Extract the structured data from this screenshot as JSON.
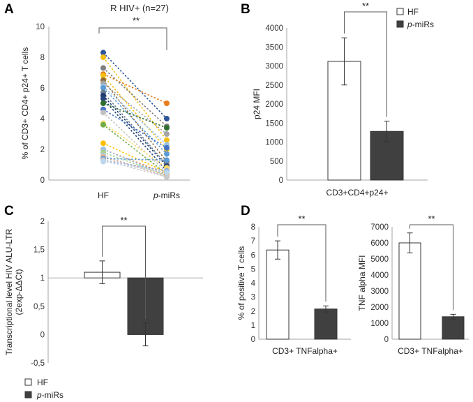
{
  "panels": {
    "A": {
      "letter": "A"
    },
    "B": {
      "letter": "B"
    },
    "C": {
      "letter": "C"
    },
    "D": {
      "letter": "D"
    }
  },
  "colors": {
    "hf_bar": "#ffffff",
    "pmirs_bar": "#404040",
    "axis": "#a6a6a6",
    "sig": "#595959"
  },
  "chart_data": [
    {
      "id": "A",
      "type": "scatter",
      "title": "R HIV+ (n=27)",
      "ylabel": "% of CD3+ CD4+ p24+ T cells",
      "categories": [
        "HF",
        "p-miRs"
      ],
      "category_labels": [
        {
          "text": "HF",
          "italic": ""
        },
        {
          "text": "-miRs",
          "italic": "p"
        }
      ],
      "ylim": [
        0,
        10
      ],
      "yticks": [
        0,
        2,
        4,
        6,
        8,
        10
      ],
      "significance": "**",
      "pairs": [
        {
          "hf": 8.3,
          "pmirs": 4.0,
          "color": "#2e5597"
        },
        {
          "hf": 8.0,
          "pmirs": 2.6,
          "color": "#f4bf14"
        },
        {
          "hf": 7.3,
          "pmirs": 3.5,
          "color": "#7f7f7f"
        },
        {
          "hf": 6.9,
          "pmirs": 5.0,
          "color": "#e87b1b"
        },
        {
          "hf": 6.8,
          "pmirs": 2.0,
          "color": "#f4bf14"
        },
        {
          "hf": 6.5,
          "pmirs": 1.2,
          "color": "#8e6a3a"
        },
        {
          "hf": 6.3,
          "pmirs": 3.0,
          "color": "#a5a5a5"
        },
        {
          "hf": 6.1,
          "pmirs": 2.3,
          "color": "#9cc3e6"
        },
        {
          "hf": 6.0,
          "pmirs": 1.7,
          "color": "#5b9bd5"
        },
        {
          "hf": 5.7,
          "pmirs": 1.0,
          "color": "#6b7e8f"
        },
        {
          "hf": 5.5,
          "pmirs": 0.9,
          "color": "#1f3a6e"
        },
        {
          "hf": 5.3,
          "pmirs": 0.6,
          "color": "#264478"
        },
        {
          "hf": 5.0,
          "pmirs": 3.4,
          "color": "#2e6e2e"
        },
        {
          "hf": 4.6,
          "pmirs": 2.1,
          "color": "#4472c4"
        },
        {
          "hf": 4.4,
          "pmirs": 0.5,
          "color": "#c0c0c0"
        },
        {
          "hf": 3.7,
          "pmirs": 0.8,
          "color": "#ffd966"
        },
        {
          "hf": 3.6,
          "pmirs": 0.4,
          "color": "#70ad47"
        },
        {
          "hf": 2.4,
          "pmirs": 0.5,
          "color": "#ffc000"
        },
        {
          "hf": 2.0,
          "pmirs": 0.4,
          "color": "#ed7d31"
        },
        {
          "hf": 2.0,
          "pmirs": 0.3,
          "color": "#9cc3e6"
        },
        {
          "hf": 1.8,
          "pmirs": 0.3,
          "color": "#a9d18e"
        },
        {
          "hf": 1.6,
          "pmirs": 0.2,
          "color": "#b4c7e7"
        },
        {
          "hf": 1.5,
          "pmirs": 0.3,
          "color": "#f4b183"
        },
        {
          "hf": 1.4,
          "pmirs": 1.3,
          "color": "#5b9bd5"
        },
        {
          "hf": 1.3,
          "pmirs": 0.6,
          "color": "#8faadc"
        },
        {
          "hf": 1.3,
          "pmirs": 0.2,
          "color": "#c9c9c9"
        },
        {
          "hf": 1.2,
          "pmirs": 0.5,
          "color": "#bdd7ee"
        }
      ]
    },
    {
      "id": "B",
      "type": "bar",
      "ylabel": "p24 MFI",
      "xlabel": "CD3+CD4+p24+",
      "ylim": [
        0,
        4000
      ],
      "yticks": [
        0,
        500,
        1000,
        1500,
        2000,
        2500,
        3000,
        3500,
        4000
      ],
      "significance": "**",
      "series": [
        {
          "name": "HF",
          "value": 3120,
          "err": 620
        },
        {
          "name": "p-miRs",
          "value": 1280,
          "err": 270
        }
      ],
      "legend": [
        {
          "text": "HF",
          "italic": ""
        },
        {
          "text": "-miRs",
          "italic": "p"
        }
      ]
    },
    {
      "id": "C",
      "type": "bar",
      "ylabel_lines": [
        "Transcriptional level HIV ALU-LTR",
        "(2exp-ΔΔCt)"
      ],
      "ylim": [
        -0.5,
        2
      ],
      "yticks": [
        -0.5,
        0,
        0.5,
        1,
        1.5,
        2
      ],
      "ytick_labels": [
        "-0,5",
        "0",
        "0,5",
        "1",
        "1,5",
        "2"
      ],
      "baseline": 1,
      "significance": "**",
      "series": [
        {
          "name": "HF",
          "value": 1.1,
          "err": 0.2
        },
        {
          "name": "p-miRs",
          "value": 0.0,
          "err": 0.2
        }
      ],
      "legend": [
        {
          "text": "HF",
          "italic": ""
        },
        {
          "text": "-miRs",
          "italic": "p"
        }
      ]
    },
    {
      "id": "D1",
      "type": "bar",
      "ylabel": "% of positive  T cells",
      "xlabel": "CD3+ TNFalpha+",
      "ylim": [
        0,
        8
      ],
      "yticks": [
        0,
        1,
        2,
        3,
        4,
        5,
        6,
        7,
        8
      ],
      "significance": "**",
      "series": [
        {
          "name": "HF",
          "value": 6.35,
          "err": 0.65
        },
        {
          "name": "p-miRs",
          "value": 2.15,
          "err": 0.22
        }
      ]
    },
    {
      "id": "D2",
      "type": "bar",
      "ylabel": "TNF alpha MFI",
      "xlabel": "CD3+ TNFalpha+",
      "ylim": [
        0,
        7000
      ],
      "yticks": [
        0,
        1000,
        2000,
        3000,
        4000,
        5000,
        6000,
        7000
      ],
      "significance": "**",
      "series": [
        {
          "name": "HF",
          "value": 6000,
          "err": 620
        },
        {
          "name": "p-miRs",
          "value": 1400,
          "err": 150
        }
      ]
    }
  ]
}
